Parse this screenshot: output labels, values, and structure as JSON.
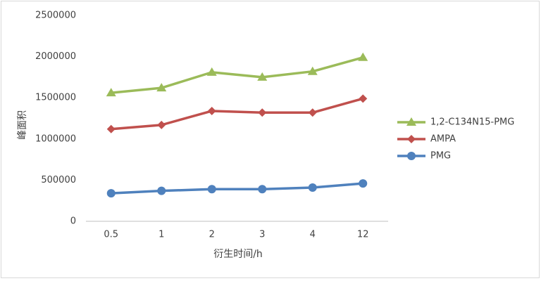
{
  "chart_data": {
    "type": "line",
    "categories": [
      "0.5",
      "1",
      "2",
      "3",
      "4",
      "12"
    ],
    "x_label": "衍生时间/h",
    "y_label": "峰面积",
    "ylim": [
      0,
      2500000
    ],
    "yticks": [
      0,
      500000,
      1000000,
      1500000,
      2000000,
      2500000
    ],
    "grid": false,
    "legend": "right",
    "series": [
      {
        "name": "1,2-C134N15-PMG",
        "color": "#9bbb59",
        "marker": "triangle",
        "values": [
          1560000,
          1620000,
          1810000,
          1750000,
          1820000,
          1990000
        ]
      },
      {
        "name": "AMPA",
        "color": "#c0504d",
        "marker": "diamond",
        "values": [
          1120000,
          1170000,
          1340000,
          1320000,
          1320000,
          1490000
        ]
      },
      {
        "name": "PMG",
        "color": "#4f81bd",
        "marker": "circle",
        "values": [
          340000,
          370000,
          390000,
          390000,
          410000,
          460000
        ]
      }
    ]
  }
}
